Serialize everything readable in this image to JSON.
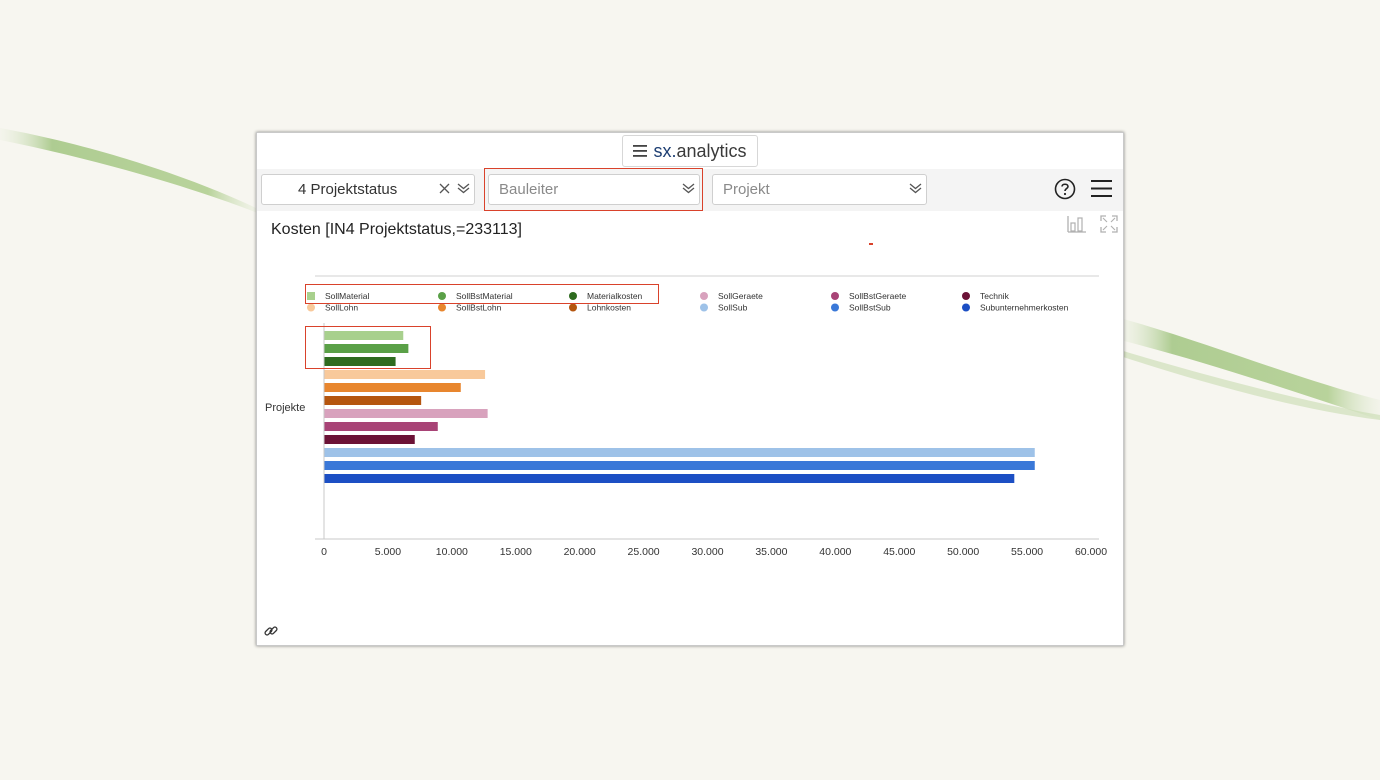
{
  "app": {
    "brand_prefix": "sx.",
    "brand_name": "analytics"
  },
  "filters": {
    "projektstatus": {
      "value": "4 Projektstatus"
    },
    "bauleiter": {
      "placeholder": "Bauleiter"
    },
    "projekt": {
      "placeholder": "Projekt"
    }
  },
  "chart_data": {
    "type": "bar",
    "orientation": "horizontal",
    "title": "Kosten [IN4 Projektstatus,=233113]",
    "categories": [
      "Projekte"
    ],
    "xlabel": "",
    "ylabel": "",
    "xlim": [
      0,
      60000
    ],
    "x_ticks": [
      "0",
      "5.000",
      "10.000",
      "15.000",
      "20.000",
      "25.000",
      "30.000",
      "35.000",
      "40.000",
      "45.000",
      "50.000",
      "55.000",
      "60.000"
    ],
    "legend_position": "top",
    "series": [
      {
        "name": "SollMaterial",
        "color": "#a8d08d",
        "values": [
          6200
        ]
      },
      {
        "name": "SollBstMaterial",
        "color": "#5aa047",
        "values": [
          6600
        ]
      },
      {
        "name": "Materialkosten",
        "color": "#2e6b1f",
        "values": [
          5600
        ]
      },
      {
        "name": "SollLohn",
        "color": "#f8c99b",
        "values": [
          12600
        ]
      },
      {
        "name": "SollBstLohn",
        "color": "#e8862e",
        "values": [
          10700
        ]
      },
      {
        "name": "Lohnkosten",
        "color": "#b5560f",
        "values": [
          7600
        ]
      },
      {
        "name": "SollGeraete",
        "color": "#d8a2bd",
        "values": [
          12800
        ]
      },
      {
        "name": "SollBstGeraete",
        "color": "#a84376",
        "values": [
          8900
        ]
      },
      {
        "name": "Technik",
        "color": "#6b1236",
        "values": [
          7100
        ]
      },
      {
        "name": "SollSub",
        "color": "#9ec2e8",
        "values": [
          55600
        ]
      },
      {
        "name": "SollBstSub",
        "color": "#3a78d8",
        "values": [
          55600
        ]
      },
      {
        "name": "Subunternehmerkosten",
        "color": "#1c4fc4",
        "values": [
          54000
        ]
      }
    ]
  }
}
